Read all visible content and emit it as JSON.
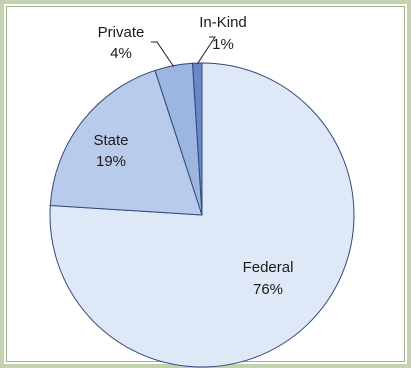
{
  "chart_data": {
    "type": "pie",
    "title": "",
    "slices": [
      {
        "label": "Federal",
        "value": 76,
        "display": "76%",
        "color": "#dfe8f6"
      },
      {
        "label": "State",
        "value": 19,
        "display": "19%",
        "color": "#b9cbea"
      },
      {
        "label": "Private",
        "value": 4,
        "display": "4%",
        "color": "#9db5e1"
      },
      {
        "label": "In-Kind",
        "value": 1,
        "display": "1%",
        "color": "#6988c8"
      }
    ],
    "legend": "none",
    "labels_placement": "on-slices-and-outside-with-leader-lines"
  },
  "colors": {
    "frame": "#c5d2b0",
    "frame_inner": "#9fae8a",
    "slice_border": "#31487a"
  }
}
